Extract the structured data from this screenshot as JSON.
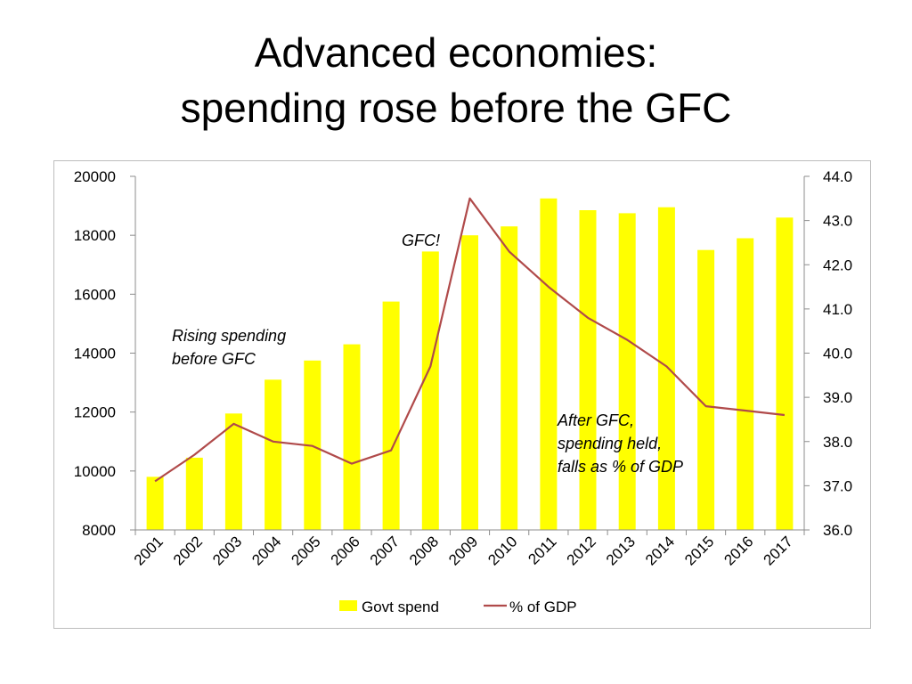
{
  "slide": {
    "title_line1": "Advanced economies:",
    "title_line2": "spending rose before the GFC"
  },
  "colors": {
    "bar": "#ffff00",
    "line": "#b04a4a",
    "axis": "#8c8c8c",
    "frame": "#bdbdbd"
  },
  "chart_data": {
    "type": "bar",
    "categories": [
      "2001",
      "2002",
      "2003",
      "2004",
      "2005",
      "2006",
      "2007",
      "2008",
      "2009",
      "2010",
      "2011",
      "2012",
      "2013",
      "2014",
      "2015",
      "2016",
      "2017"
    ],
    "series": [
      {
        "name": "Govt spend",
        "type": "bar",
        "axis": "left",
        "values": [
          9800,
          10450,
          11950,
          13100,
          13750,
          14300,
          15750,
          17450,
          18000,
          18300,
          19250,
          18850,
          18750,
          18950,
          17500,
          17900,
          18600
        ]
      },
      {
        "name": "% of GDP",
        "type": "line",
        "axis": "right",
        "values": [
          37.1,
          37.7,
          38.4,
          38.0,
          37.9,
          37.5,
          37.8,
          39.7,
          43.5,
          42.3,
          41.5,
          40.8,
          40.3,
          39.7,
          38.8,
          38.7,
          38.6
        ]
      }
    ],
    "y_left": {
      "min": 8000,
      "max": 20000,
      "ticks": [
        "8000",
        "10000",
        "12000",
        "14000",
        "16000",
        "18000",
        "20000"
      ]
    },
    "y_right": {
      "min": 36.0,
      "max": 44.0,
      "ticks": [
        "36.0",
        "37.0",
        "38.0",
        "39.0",
        "40.0",
        "41.0",
        "42.0",
        "43.0",
        "44.0"
      ]
    },
    "legend": {
      "position": "bottom",
      "items": [
        "Govt spend",
        "% of GDP"
      ]
    },
    "grid": false,
    "annotations": [
      {
        "lines": [
          "Rising spending",
          "before GFC"
        ]
      },
      {
        "lines": [
          "GFC!"
        ]
      },
      {
        "lines": [
          "After GFC,",
          "spending held,",
          "falls as % of GDP"
        ]
      }
    ]
  }
}
